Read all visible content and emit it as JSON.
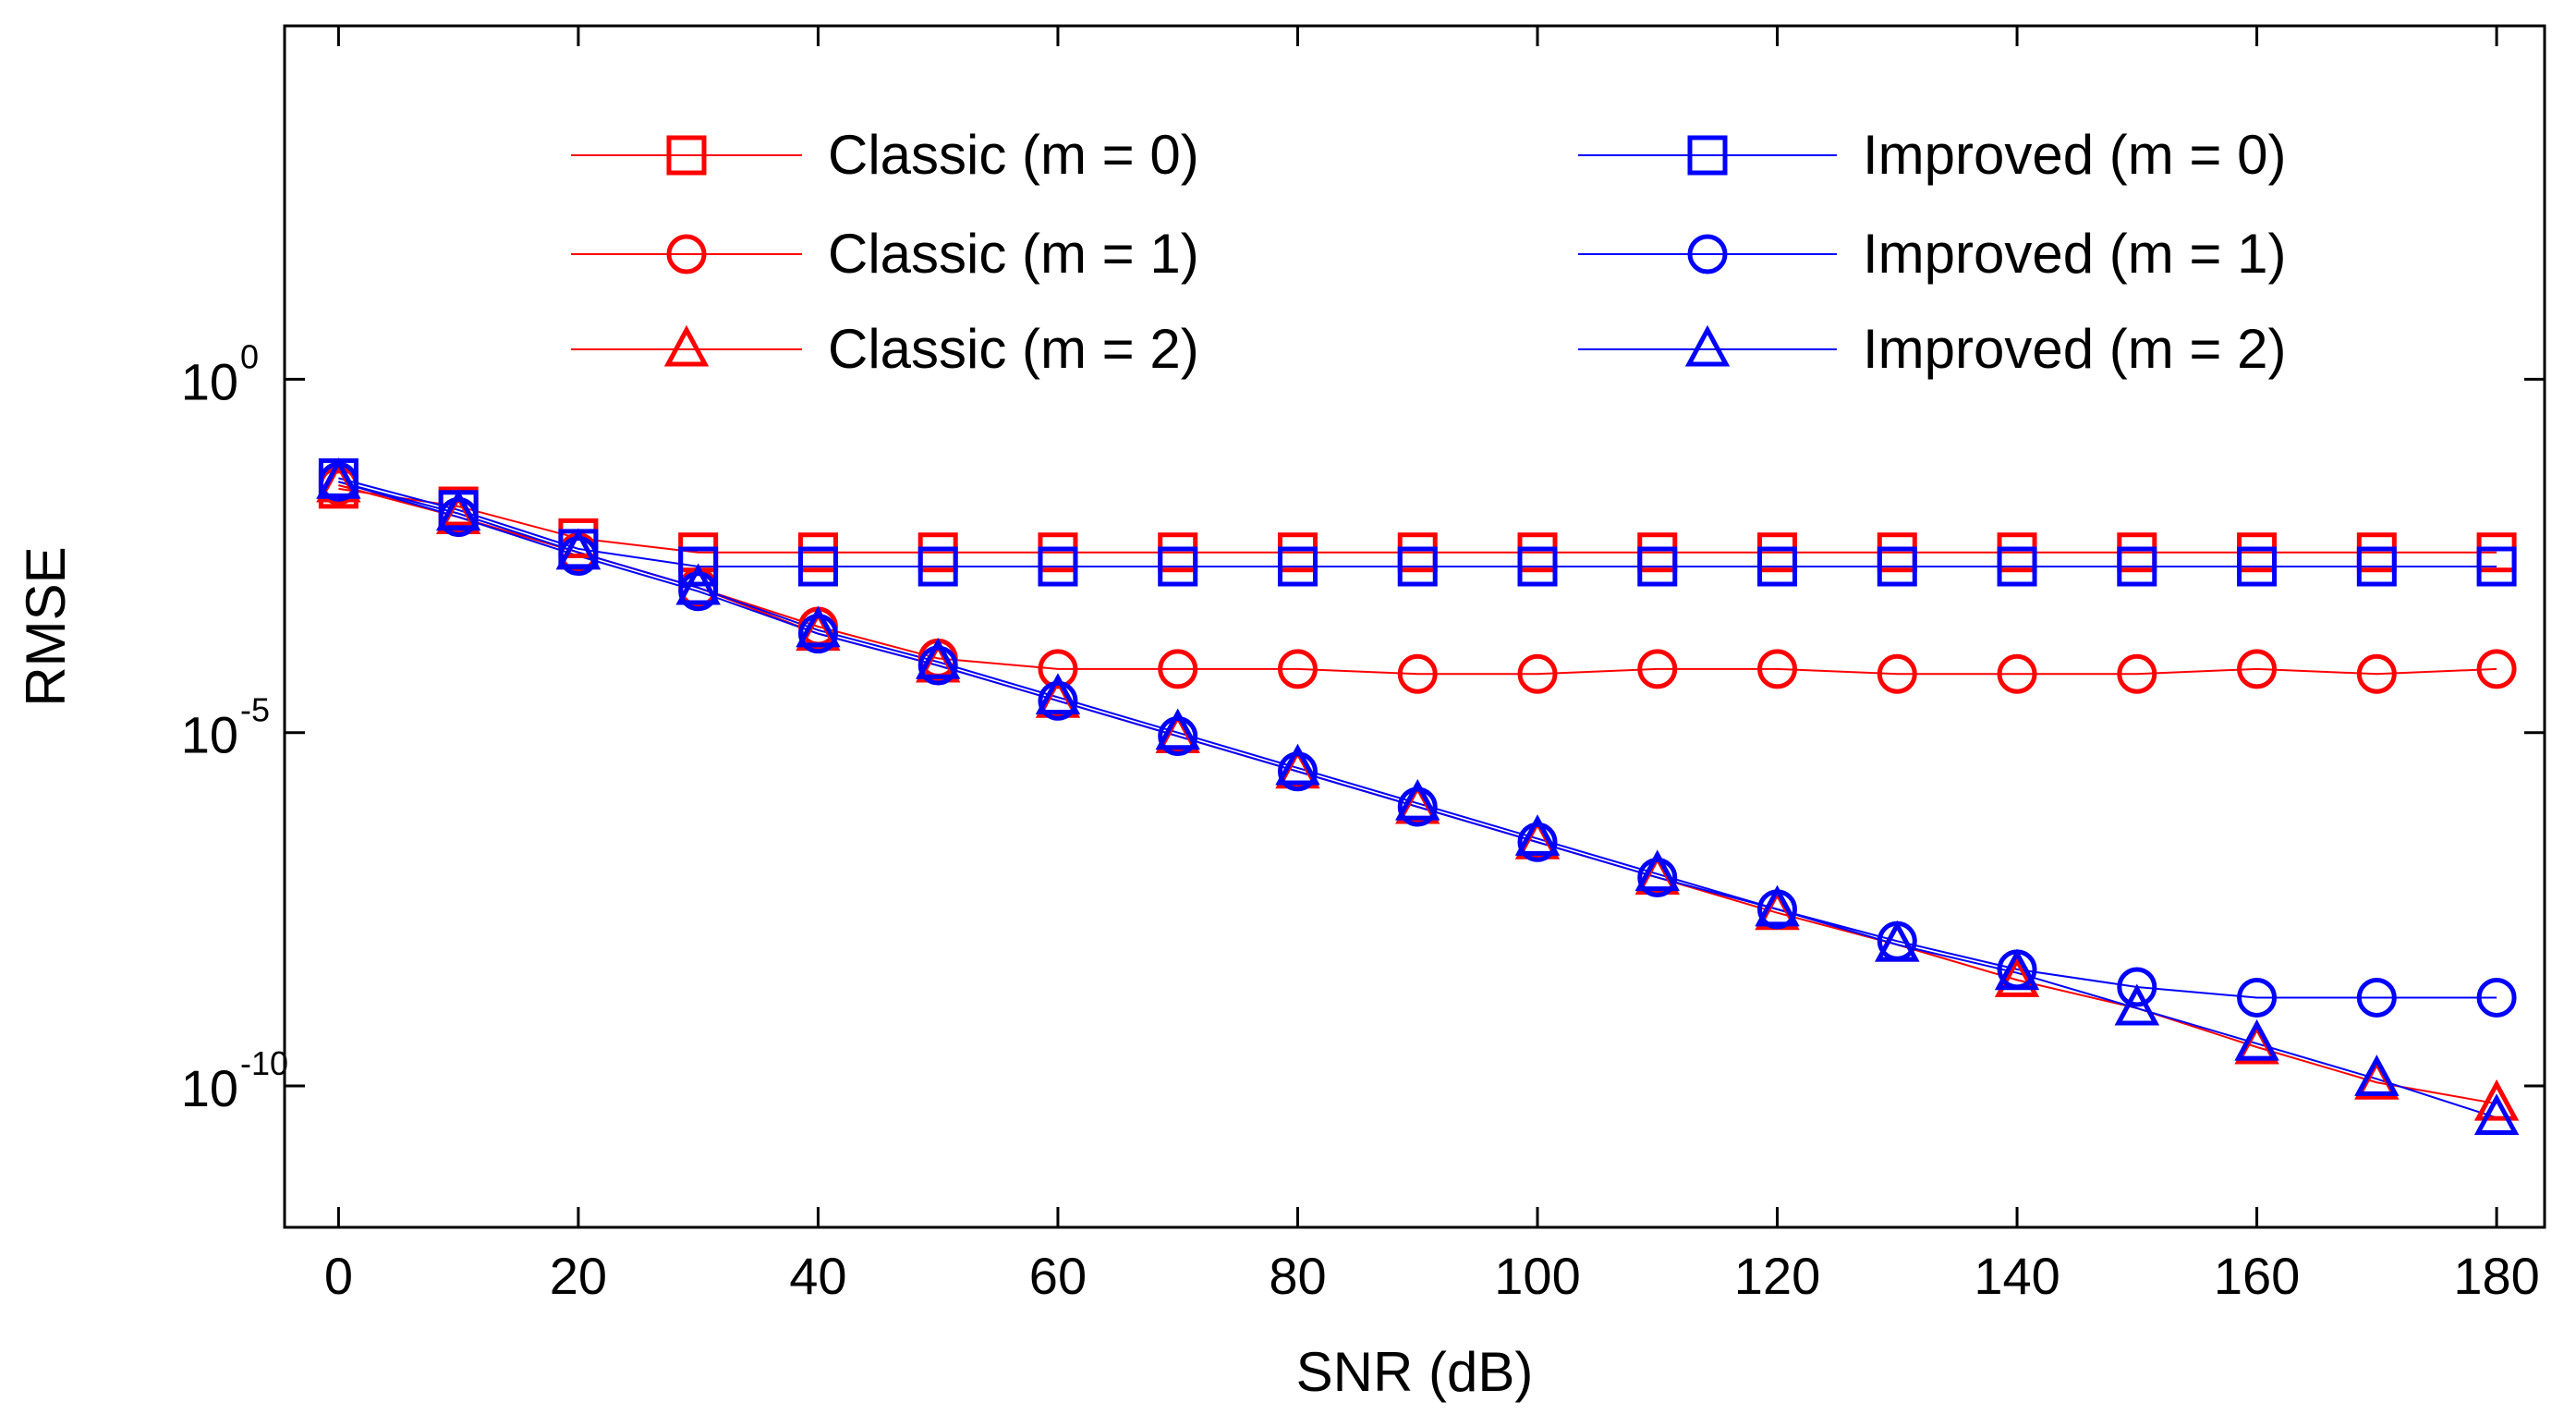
{
  "chart_data": {
    "type": "line",
    "title": "",
    "xlabel": "SNR (dB)",
    "ylabel": "RMSE",
    "yscale": "log",
    "xlim": [
      -4.5,
      184
    ],
    "ylim_exp": [
      -12,
      5
    ],
    "xticks": [
      0,
      20,
      40,
      60,
      80,
      100,
      120,
      140,
      160,
      180
    ],
    "yticks": [
      {
        "exp": 0,
        "base": "10",
        "sup": "0"
      },
      {
        "exp": -5,
        "base": "10",
        "sup": "-5"
      },
      {
        "exp": -10,
        "base": "10",
        "sup": "-10"
      }
    ],
    "x": [
      0,
      10,
      20,
      30,
      40,
      50,
      60,
      70,
      80,
      90,
      100,
      110,
      120,
      130,
      140,
      150,
      160,
      170,
      180
    ],
    "legend_position": "top",
    "series": [
      {
        "name": "Classic (m = 0)",
        "color": "#ff0000",
        "marker": "square",
        "log_values": [
          -1.55,
          -1.8,
          -2.25,
          -2.45,
          -2.45,
          -2.45,
          -2.45,
          -2.45,
          -2.45,
          -2.45,
          -2.45,
          -2.45,
          -2.45,
          -2.45,
          -2.45,
          -2.45,
          -2.45,
          -2.45,
          -2.45
        ]
      },
      {
        "name": "Classic (m = 1)",
        "color": "#ff0000",
        "marker": "circle",
        "log_values": [
          -1.5,
          -1.95,
          -2.45,
          -2.95,
          -3.5,
          -3.95,
          -4.1,
          -4.1,
          -4.1,
          -4.17,
          -4.17,
          -4.1,
          -4.1,
          -4.17,
          -4.17,
          -4.17,
          -4.1,
          -4.17,
          -4.1
        ]
      },
      {
        "name": "Classic (m = 2)",
        "color": "#ff0000",
        "marker": "triangle",
        "log_values": [
          -1.5,
          -1.95,
          -2.45,
          -2.95,
          -3.6,
          -4.05,
          -4.55,
          -5.05,
          -5.55,
          -6.05,
          -6.55,
          -7.05,
          -7.55,
          -8.0,
          -8.5,
          -8.9,
          -9.45,
          -9.95,
          -10.25
        ]
      },
      {
        "name": "Improved (m = 0)",
        "color": "#0000ff",
        "marker": "square",
        "log_values": [
          -1.4,
          -1.85,
          -2.4,
          -2.65,
          -2.65,
          -2.65,
          -2.65,
          -2.65,
          -2.65,
          -2.65,
          -2.65,
          -2.65,
          -2.65,
          -2.65,
          -2.65,
          -2.65,
          -2.65,
          -2.65,
          -2.65
        ]
      },
      {
        "name": "Improved (m = 1)",
        "color": "#0000ff",
        "marker": "circle",
        "log_values": [
          -1.45,
          -1.95,
          -2.5,
          -3.0,
          -3.6,
          -4.05,
          -4.55,
          -5.05,
          -5.55,
          -6.05,
          -6.55,
          -7.05,
          -7.5,
          -7.95,
          -8.35,
          -8.6,
          -8.75,
          -8.75,
          -8.75
        ]
      },
      {
        "name": "Improved (m = 2)",
        "color": "#0000ff",
        "marker": "triangle",
        "log_values": [
          -1.45,
          -1.9,
          -2.45,
          -2.95,
          -3.55,
          -4.0,
          -4.5,
          -5.0,
          -5.5,
          -6.0,
          -6.5,
          -7.0,
          -7.5,
          -8.0,
          -8.4,
          -8.9,
          -9.4,
          -9.9,
          -10.45
        ]
      }
    ]
  }
}
